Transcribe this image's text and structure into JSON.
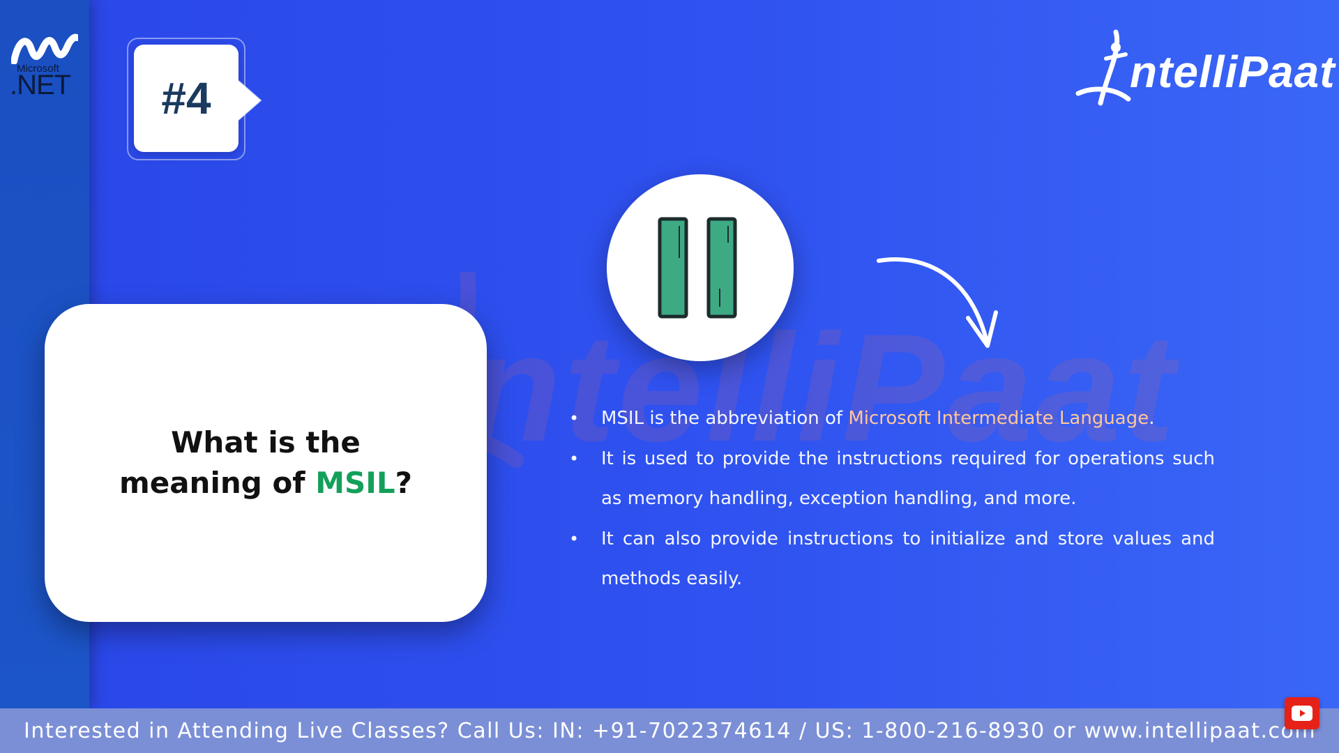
{
  "slide": {
    "number_badge": "#4",
    "question": {
      "line1": "What is the",
      "line2_prefix": "meaning of ",
      "line2_highlight": "MSIL",
      "line2_suffix": "?"
    },
    "bullets": [
      {
        "prefix": "MSIL is the abbreviation of ",
        "highlight": "Microsoft Intermediate Language",
        "suffix": "."
      },
      {
        "text": "It is used to provide the instructions required for operations such as memory handling, exception handling, and more."
      },
      {
        "text": "It can also provide instructions to initialize and store values and methods easily."
      }
    ]
  },
  "logos": {
    "dotnet_small": "Microsoft",
    "dotnet_large": ".NET",
    "brand": "ntelliPaat",
    "watermark": "ntelliPaat"
  },
  "footer": {
    "text": "Interested in Attending Live Classes? Call Us: IN: +91-7022374614 / US: 1-800-216-8930 or www.intellipaat.com"
  },
  "icons": {
    "pause": "pause-icon",
    "arrow": "curved-arrow-icon",
    "youtube": "youtube-subscribe-icon"
  },
  "colors": {
    "background": "#2f52f0",
    "sidebar": "#1c55c8",
    "question_highlight": "#14a05a",
    "bullet_highlight": "#ffc79a",
    "pause_bars": "#3daa84",
    "footer": "#7b8fd6"
  }
}
